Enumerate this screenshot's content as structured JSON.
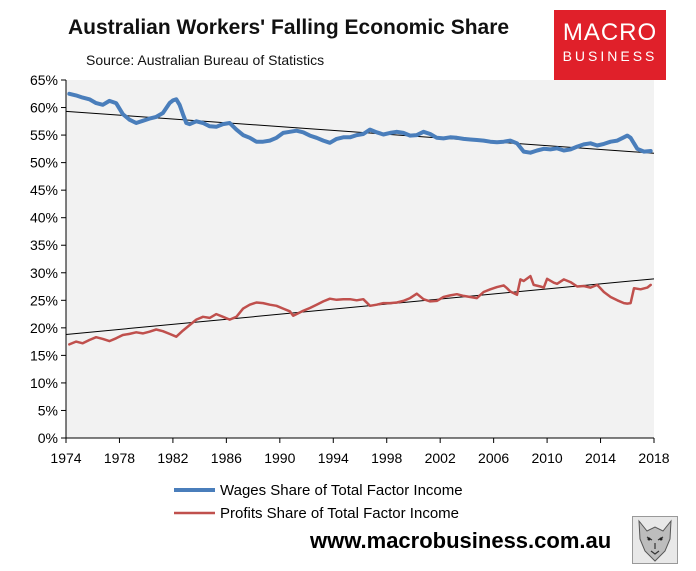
{
  "header": {
    "title": "Australian Workers' Falling Economic Share",
    "source": "Source: Australian Bureau of Statistics"
  },
  "logo": {
    "line1": "MACRO",
    "line2": "BUSINESS"
  },
  "footer": {
    "website": "www.macrobusiness.com.au"
  },
  "colors": {
    "wages": "#4a7ebb",
    "profits": "#c0504d",
    "trend": "#000000",
    "plot_bg": "#f2f2f2",
    "brand": "#e0202a"
  },
  "chart_data": {
    "type": "line",
    "title": "Australian Workers' Falling Economic Share",
    "xlim": [
      1974,
      2018
    ],
    "ylim": [
      0,
      65
    ],
    "x_ticks": [
      1974,
      1978,
      1982,
      1986,
      1990,
      1994,
      1998,
      2002,
      2006,
      2010,
      2014,
      2018
    ],
    "y_ticks": [
      0,
      5,
      10,
      15,
      20,
      25,
      30,
      35,
      40,
      45,
      50,
      55,
      60,
      65
    ],
    "y_tick_labels": [
      "0%",
      "5%",
      "10%",
      "15%",
      "20%",
      "25%",
      "30%",
      "35%",
      "40%",
      "45%",
      "50%",
      "55%",
      "60%",
      "65%"
    ],
    "legend_position": "bottom",
    "grid": false,
    "series": [
      {
        "name": "Wages Share of Total Factor Income",
        "x": [
          1974.25,
          1974.75,
          1975.25,
          1975.75,
          1976.25,
          1976.75,
          1977.25,
          1977.75,
          1978.25,
          1978.75,
          1979.25,
          1979.75,
          1980.25,
          1980.75,
          1981.25,
          1981.75,
          1982.0,
          1982.25,
          1982.5,
          1982.75,
          1983.0,
          1983.25,
          1983.75,
          1984.25,
          1984.75,
          1985.25,
          1985.75,
          1986.25,
          1986.75,
          1987.25,
          1987.75,
          1988.25,
          1988.75,
          1989.25,
          1989.75,
          1990.25,
          1990.75,
          1991.25,
          1991.75,
          1992.25,
          1992.75,
          1993.25,
          1993.75,
          1994.25,
          1994.75,
          1995.25,
          1995.75,
          1996.25,
          1996.75,
          1997.25,
          1997.75,
          1998.25,
          1998.75,
          1999.25,
          1999.75,
          2000.25,
          2000.75,
          2001.25,
          2001.75,
          2002.25,
          2002.75,
          2003.25,
          2003.75,
          2004.25,
          2004.75,
          2005.25,
          2005.75,
          2006.25,
          2006.75,
          2007.25,
          2007.75,
          2008.25,
          2008.75,
          2009.25,
          2009.75,
          2010.25,
          2010.75,
          2011.25,
          2011.75,
          2012.25,
          2012.75,
          2013.25,
          2013.75,
          2014.25,
          2014.75,
          2015.25,
          2015.75,
          2016.0,
          2016.25,
          2016.75,
          2017.25,
          2017.75
        ],
        "values": [
          62.5,
          62.2,
          61.8,
          61.5,
          60.8,
          60.5,
          61.2,
          60.8,
          58.8,
          57.8,
          57.2,
          57.6,
          58.0,
          58.3,
          59.0,
          60.8,
          61.3,
          61.5,
          60.5,
          58.8,
          57.2,
          57.0,
          57.5,
          57.2,
          56.6,
          56.5,
          57.0,
          57.2,
          56.0,
          55.0,
          54.5,
          53.8,
          53.8,
          54.0,
          54.5,
          55.4,
          55.6,
          55.8,
          55.5,
          54.9,
          54.5,
          54.0,
          53.6,
          54.3,
          54.6,
          54.6,
          55.0,
          55.2,
          56.0,
          55.5,
          55.1,
          55.4,
          55.6,
          55.4,
          54.9,
          55.0,
          55.6,
          55.2,
          54.5,
          54.4,
          54.6,
          54.5,
          54.3,
          54.2,
          54.1,
          54.0,
          53.8,
          53.7,
          53.8,
          54.0,
          53.5,
          52.0,
          51.8,
          52.2,
          52.5,
          52.4,
          52.6,
          52.2,
          52.4,
          52.9,
          53.3,
          53.5,
          53.1,
          53.4,
          53.8,
          54.0,
          54.6,
          54.9,
          54.5,
          52.5,
          52.0,
          52.1
        ]
      },
      {
        "name": "Profits Share of Total Factor Income",
        "x": [
          1974.25,
          1974.75,
          1975.25,
          1975.75,
          1976.25,
          1976.75,
          1977.25,
          1977.75,
          1978.25,
          1978.75,
          1979.25,
          1979.75,
          1980.25,
          1980.75,
          1981.25,
          1981.75,
          1982.25,
          1982.75,
          1983.25,
          1983.75,
          1984.25,
          1984.75,
          1985.25,
          1985.75,
          1986.25,
          1986.75,
          1987.25,
          1987.75,
          1988.25,
          1988.75,
          1989.25,
          1989.75,
          1990.25,
          1990.75,
          1991.0,
          1991.25,
          1991.75,
          1992.25,
          1992.75,
          1993.25,
          1993.75,
          1994.25,
          1994.75,
          1995.25,
          1995.75,
          1996.25,
          1996.75,
          1997.25,
          1997.75,
          1998.25,
          1998.75,
          1999.25,
          1999.75,
          2000.25,
          2000.75,
          2001.25,
          2001.75,
          2002.25,
          2002.75,
          2003.25,
          2003.75,
          2004.25,
          2004.75,
          2005.25,
          2005.75,
          2006.25,
          2006.75,
          2007.0,
          2007.25,
          2007.75,
          2008.0,
          2008.25,
          2008.75,
          2009.0,
          2009.5,
          2009.75,
          2010.0,
          2010.5,
          2010.75,
          2011.25,
          2011.75,
          2012.25,
          2012.75,
          2013.25,
          2013.75,
          2014.25,
          2014.75,
          2015.25,
          2015.75,
          2016.0,
          2016.25,
          2016.5,
          2017.0,
          2017.5,
          2017.75
        ],
        "values": [
          17.0,
          17.5,
          17.2,
          17.8,
          18.3,
          18.0,
          17.6,
          18.1,
          18.7,
          18.9,
          19.2,
          19.0,
          19.3,
          19.7,
          19.4,
          18.9,
          18.4,
          19.5,
          20.5,
          21.5,
          22.0,
          21.8,
          22.5,
          22.0,
          21.5,
          22.0,
          23.5,
          24.2,
          24.6,
          24.5,
          24.2,
          24.0,
          23.5,
          23.0,
          22.2,
          22.5,
          23.1,
          23.6,
          24.2,
          24.8,
          25.3,
          25.1,
          25.2,
          25.2,
          25.0,
          25.2,
          24.0,
          24.2,
          24.5,
          24.5,
          24.6,
          24.9,
          25.4,
          26.2,
          25.2,
          24.8,
          24.9,
          25.6,
          25.9,
          26.1,
          25.8,
          25.6,
          25.4,
          26.5,
          27.0,
          27.4,
          27.7,
          27.2,
          26.6,
          26.0,
          28.8,
          28.5,
          29.4,
          27.8,
          27.5,
          27.3,
          28.9,
          28.2,
          28.0,
          28.8,
          28.3,
          27.5,
          27.6,
          27.3,
          27.8,
          26.5,
          25.6,
          25.0,
          24.5,
          24.4,
          24.5,
          27.2,
          27.0,
          27.3,
          27.8
        ]
      }
    ],
    "trendlines": [
      {
        "x": [
          1974,
          2018
        ],
        "values": [
          59.3,
          51.7
        ]
      },
      {
        "x": [
          1974,
          2018
        ],
        "values": [
          18.8,
          28.9
        ]
      }
    ]
  }
}
